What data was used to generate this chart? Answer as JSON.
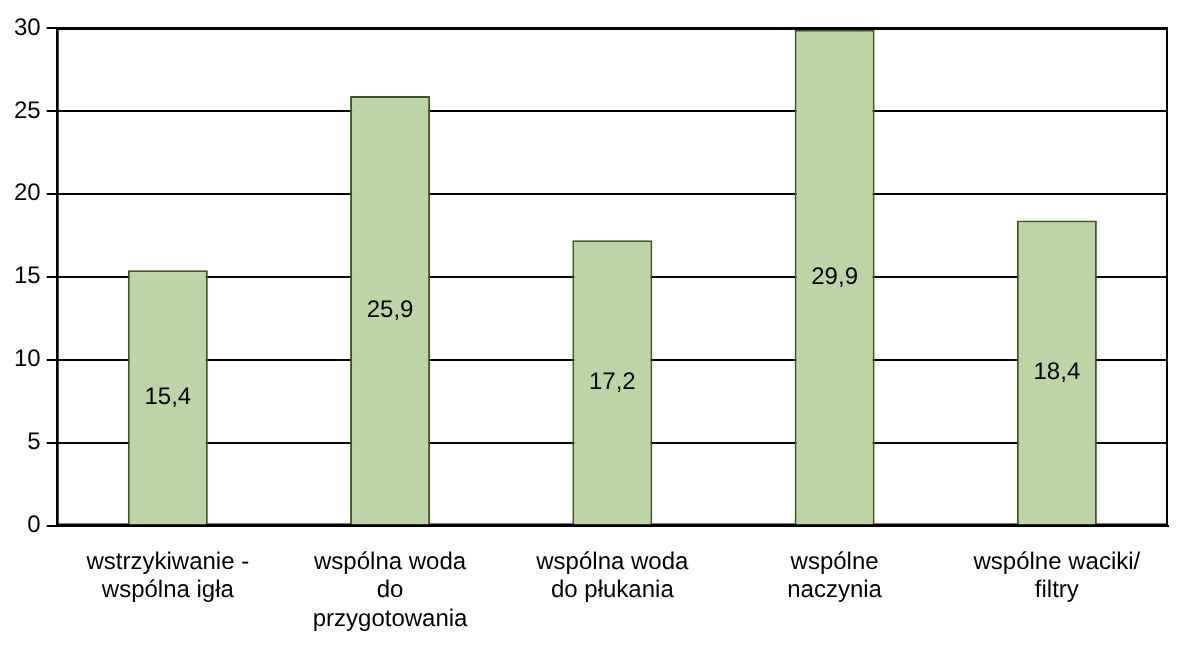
{
  "chart_data": {
    "type": "bar",
    "categories": [
      "wstrzykiwanie -\nwspólna igła",
      "wspólna woda\ndo\nprzygotowania",
      "wspólna woda\ndo płukania",
      "wspólne\nnaczynia",
      "wspólne waciki/\nfiltry"
    ],
    "values": [
      15.4,
      25.9,
      17.2,
      29.9,
      18.4
    ],
    "value_labels": [
      "15,4",
      "25,9",
      "17,2",
      "29,9",
      "18,4"
    ],
    "color": "#bcd4a6",
    "ylim": [
      0,
      30
    ],
    "yticks": [
      0,
      5,
      10,
      15,
      20,
      25,
      30
    ],
    "grid": "y",
    "legend": false
  }
}
